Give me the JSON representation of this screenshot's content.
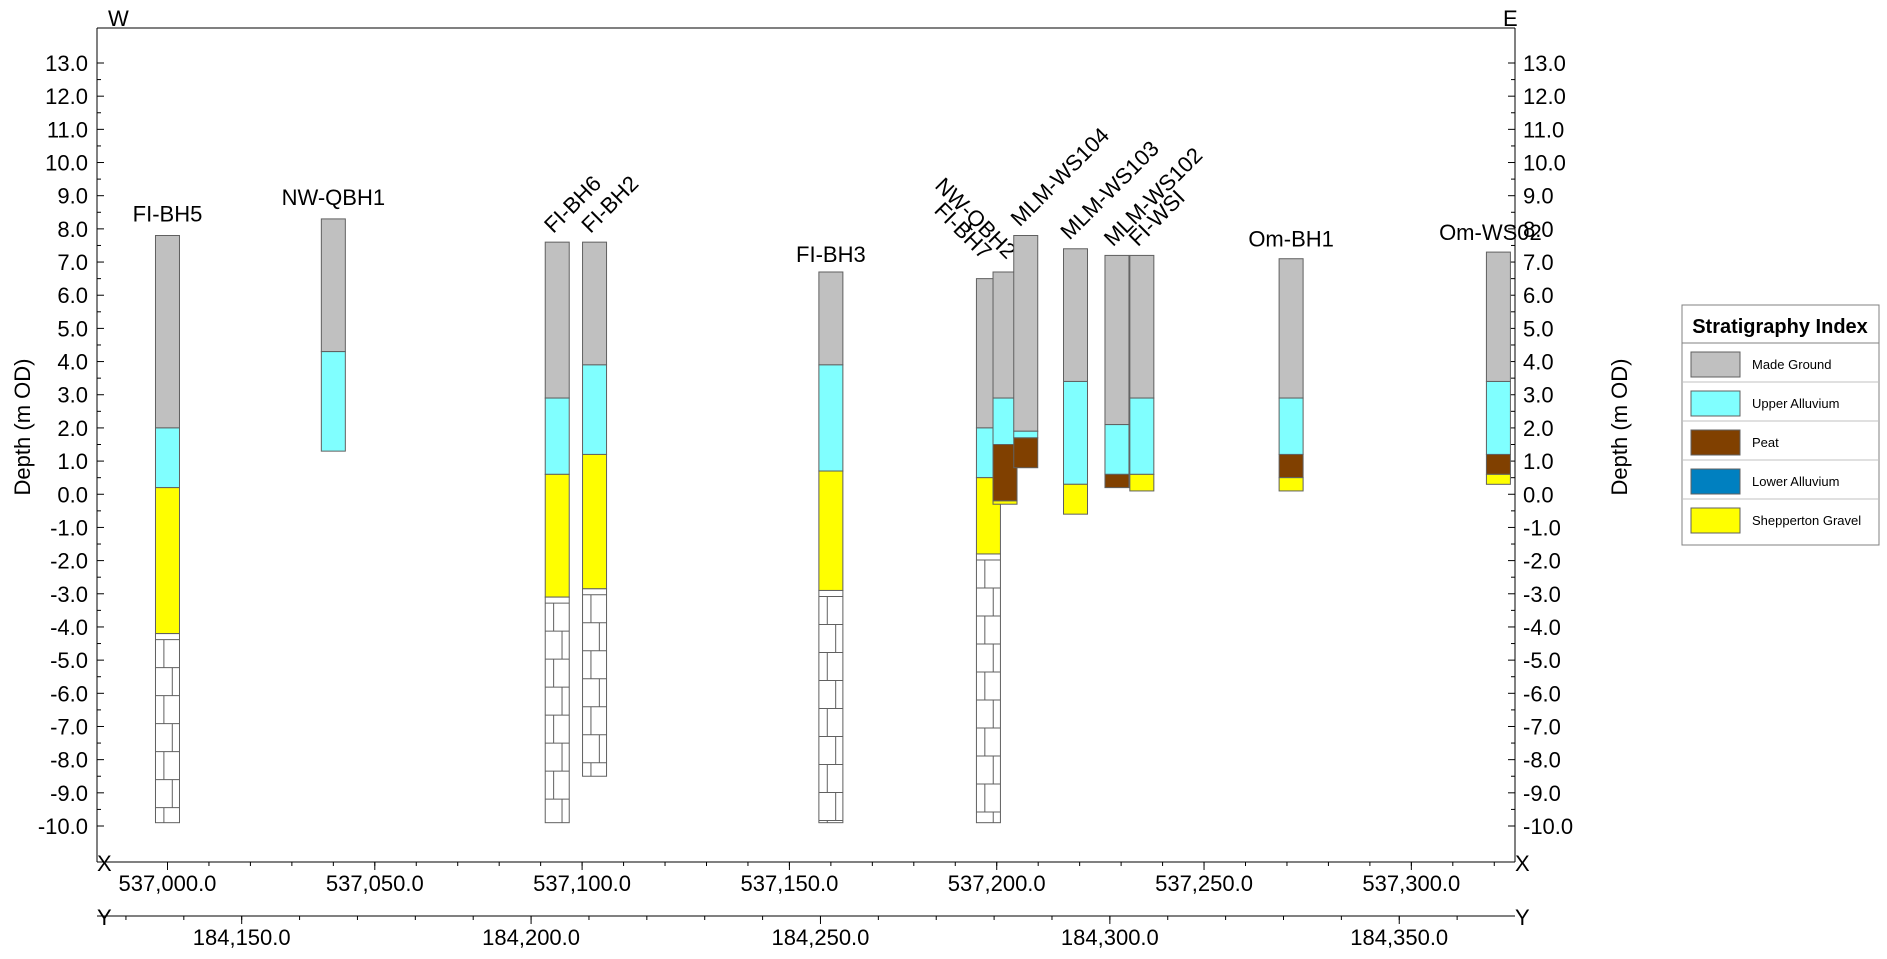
{
  "chart_data": {
    "type": "stratigraphic-section",
    "ylabel": "Depth (m OD)",
    "ylim": [
      -10.0,
      13.0
    ],
    "y_ticks": [
      "13.0",
      "12.0",
      "11.0",
      "10.0",
      "9.0",
      "8.0",
      "7.0",
      "6.0",
      "5.0",
      "4.0",
      "3.0",
      "2.0",
      "1.0",
      "0.0",
      "-1.0",
      "-2.0",
      "-3.0",
      "-4.0",
      "-5.0",
      "-6.0",
      "-7.0",
      "-8.0",
      "-9.0",
      "-10.0"
    ],
    "y_tick_values": [
      13,
      12,
      11,
      10,
      9,
      8,
      7,
      6,
      5,
      4,
      3,
      2,
      1,
      0,
      -1,
      -2,
      -3,
      -4,
      -5,
      -6,
      -7,
      -8,
      -9,
      -10
    ],
    "x_axis": {
      "letter": "X",
      "range": [
        536983,
        537325
      ],
      "ticks": [
        "537,000.0",
        "537,050.0",
        "537,100.0",
        "537,150.0",
        "537,200.0",
        "537,250.0",
        "537,300.0"
      ],
      "tick_values": [
        537000,
        537050,
        537100,
        537150,
        537200,
        537250,
        537300
      ]
    },
    "y_axis_coord": {
      "letter": "Y",
      "range": [
        184125,
        184370
      ],
      "ticks": [
        "184,150.0",
        "184,200.0",
        "184,250.0",
        "184,300.0",
        "184,350.0"
      ],
      "tick_values": [
        184150,
        184200,
        184250,
        184300,
        184350
      ]
    },
    "orientation": {
      "west": "W",
      "east": "E"
    },
    "legend": {
      "title": "Stratigraphy Index",
      "placement": "right",
      "items": [
        {
          "key": "made_ground",
          "label": "Made Ground",
          "color": "#c0c0c0"
        },
        {
          "key": "upper_alluvium",
          "label": "Upper Alluvium",
          "color": "#80ffff"
        },
        {
          "key": "peat",
          "label": "Peat",
          "color": "#804000"
        },
        {
          "key": "lower_alluvium",
          "label": "Lower Alluvium",
          "color": "#0080c0"
        },
        {
          "key": "shepperton_gravel",
          "label": "Shepperton Gravel",
          "color": "#ffff00"
        }
      ]
    },
    "boreholes": [
      {
        "name": "FI-BH5",
        "x": 537000,
        "layers": [
          {
            "unit": "made_ground",
            "top": 7.8,
            "bottom": 2.0
          },
          {
            "unit": "upper_alluvium",
            "top": 2.0,
            "bottom": 0.2
          },
          {
            "unit": "shepperton_gravel",
            "top": 0.2,
            "bottom": -4.2
          },
          {
            "unit": "bedrock",
            "top": -4.2,
            "bottom": -9.9
          }
        ]
      },
      {
        "name": "NW-QBH1",
        "x": 537040,
        "layers": [
          {
            "unit": "made_ground",
            "top": 8.3,
            "bottom": 4.3
          },
          {
            "unit": "upper_alluvium",
            "top": 4.3,
            "bottom": 1.3
          }
        ]
      },
      {
        "name": "FI-BH6",
        "x": 537094,
        "layers": [
          {
            "unit": "made_ground",
            "top": 7.6,
            "bottom": 2.9
          },
          {
            "unit": "upper_alluvium",
            "top": 2.9,
            "bottom": 0.6
          },
          {
            "unit": "shepperton_gravel",
            "top": 0.6,
            "bottom": -3.1
          },
          {
            "unit": "bedrock",
            "top": -3.1,
            "bottom": -9.9
          }
        ]
      },
      {
        "name": "FI-BH2",
        "x": 537103,
        "layers": [
          {
            "unit": "made_ground",
            "top": 7.6,
            "bottom": 3.9
          },
          {
            "unit": "upper_alluvium",
            "top": 3.9,
            "bottom": 1.2
          },
          {
            "unit": "shepperton_gravel",
            "top": 1.2,
            "bottom": -2.85
          },
          {
            "unit": "bedrock",
            "top": -2.85,
            "bottom": -8.5
          }
        ]
      },
      {
        "name": "FI-BH3",
        "x": 537160,
        "layers": [
          {
            "unit": "made_ground",
            "top": 6.7,
            "bottom": 3.9
          },
          {
            "unit": "upper_alluvium",
            "top": 3.9,
            "bottom": 0.7
          },
          {
            "unit": "shepperton_gravel",
            "top": 0.7,
            "bottom": -2.9
          },
          {
            "unit": "bedrock",
            "top": -2.9,
            "bottom": -9.9
          }
        ]
      },
      {
        "name": "FI-BH7",
        "x": 537198,
        "layers": [
          {
            "unit": "made_ground",
            "top": 6.5,
            "bottom": 2.0
          },
          {
            "unit": "upper_alluvium",
            "top": 2.0,
            "bottom": 0.5
          },
          {
            "unit": "shepperton_gravel",
            "top": 0.5,
            "bottom": -1.8
          },
          {
            "unit": "bedrock",
            "top": -1.8,
            "bottom": -9.9
          }
        ]
      },
      {
        "name": "NW-QBH2",
        "x": 537202,
        "layers": [
          {
            "unit": "made_ground",
            "top": 6.7,
            "bottom": 2.9
          },
          {
            "unit": "upper_alluvium",
            "top": 2.9,
            "bottom": 1.5
          },
          {
            "unit": "peat",
            "top": 1.5,
            "bottom": -0.2
          },
          {
            "unit": "shepperton_gravel",
            "top": -0.2,
            "bottom": -0.3
          }
        ]
      },
      {
        "name": "MLM-WS104",
        "x": 537207,
        "layers": [
          {
            "unit": "made_ground",
            "top": 7.8,
            "bottom": 1.9
          },
          {
            "unit": "upper_alluvium",
            "top": 1.9,
            "bottom": 1.7
          },
          {
            "unit": "peat",
            "top": 1.7,
            "bottom": 0.8
          }
        ]
      },
      {
        "name": "MLM-WS103",
        "x": 537219,
        "layers": [
          {
            "unit": "made_ground",
            "top": 7.4,
            "bottom": 3.4
          },
          {
            "unit": "upper_alluvium",
            "top": 3.4,
            "bottom": 0.3
          },
          {
            "unit": "shepperton_gravel",
            "top": 0.3,
            "bottom": -0.6
          }
        ]
      },
      {
        "name": "MLM-WS102",
        "x": 537229,
        "layers": [
          {
            "unit": "made_ground",
            "top": 7.2,
            "bottom": 2.1
          },
          {
            "unit": "upper_alluvium",
            "top": 2.1,
            "bottom": 0.6
          },
          {
            "unit": "peat",
            "top": 0.6,
            "bottom": 0.2
          }
        ]
      },
      {
        "name": "FI-WSI",
        "x": 537235,
        "layers": [
          {
            "unit": "made_ground",
            "top": 7.2,
            "bottom": 2.9
          },
          {
            "unit": "upper_alluvium",
            "top": 2.9,
            "bottom": 0.6
          },
          {
            "unit": "shepperton_gravel",
            "top": 0.6,
            "bottom": 0.1
          }
        ]
      },
      {
        "name": "Om-BH1",
        "x": 537271,
        "layers": [
          {
            "unit": "made_ground",
            "top": 7.1,
            "bottom": 2.9
          },
          {
            "unit": "upper_alluvium",
            "top": 2.9,
            "bottom": 1.2
          },
          {
            "unit": "peat",
            "top": 1.2,
            "bottom": 0.5
          },
          {
            "unit": "shepperton_gravel",
            "top": 0.5,
            "bottom": 0.1
          }
        ]
      },
      {
        "name": "Om-WS02",
        "x": 537321,
        "layers": [
          {
            "unit": "made_ground",
            "top": 7.3,
            "bottom": 3.4
          },
          {
            "unit": "upper_alluvium",
            "top": 3.4,
            "bottom": 1.2
          },
          {
            "unit": "peat",
            "top": 1.2,
            "bottom": 0.6
          },
          {
            "unit": "shepperton_gravel",
            "top": 0.6,
            "bottom": 0.3
          }
        ]
      }
    ]
  }
}
